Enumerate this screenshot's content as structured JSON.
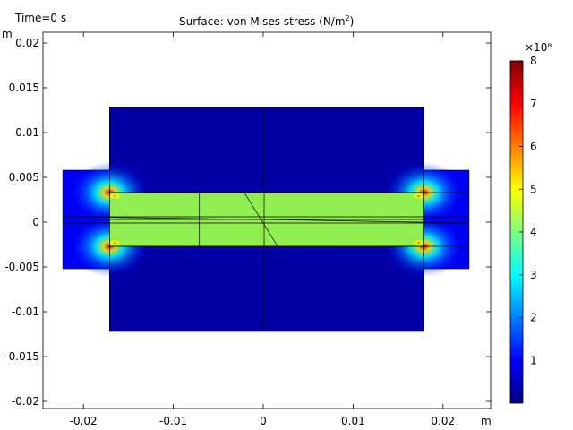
{
  "header": {
    "time_label": "Time=0 s",
    "title": "Surface: von Mises stress (N/m²)"
  },
  "chart_data": {
    "type": "heatmap",
    "title": "Surface: von Mises stress (N/m²)",
    "xlabel": "m",
    "ylabel": "m",
    "xlim": [
      -0.0245,
      0.0253
    ],
    "ylim": [
      -0.0208,
      0.0212
    ],
    "x_ticks": [
      "-0.02",
      "-0.01",
      "0",
      "0.01",
      "0.02"
    ],
    "x_tick_values": [
      -0.02,
      -0.01,
      0,
      0.01,
      0.02
    ],
    "y_ticks": [
      "0.02",
      "0.015",
      "0.01",
      "0.005",
      "0",
      "-0.005",
      "-0.01",
      "-0.015",
      "-0.02"
    ],
    "y_tick_values": [
      0.02,
      0.015,
      0.01,
      0.005,
      0,
      -0.005,
      -0.01,
      -0.015,
      -0.02
    ],
    "colorbar": {
      "label": "×10⁸",
      "ticks": [
        "1",
        "2",
        "3",
        "4",
        "5",
        "6",
        "7",
        "8"
      ],
      "tick_values": [
        1,
        2,
        3,
        4,
        5,
        6,
        7,
        8
      ],
      "min": 0,
      "max": 8,
      "colormap": [
        "#00007f",
        "#0000ff",
        "#007fff",
        "#00ffff",
        "#7fff7f",
        "#ffff00",
        "#ff7f00",
        "#ff0000",
        "#7f0000"
      ]
    },
    "regions": [
      {
        "name": "outer-block",
        "x": [
          -0.0171,
          0.0179
        ],
        "y": [
          -0.0122,
          0.0128
        ],
        "stress": 0.3
      },
      {
        "name": "inner-bar",
        "x": [
          -0.0171,
          0.0179
        ],
        "y": [
          -0.0027,
          0.0033
        ],
        "stress": 4.0
      },
      {
        "name": "left-tab",
        "x": [
          -0.0223,
          -0.0171
        ],
        "y": [
          -0.0052,
          0.0058
        ],
        "stress": 0.9
      },
      {
        "name": "right-tab",
        "x": [
          0.0179,
          0.0229
        ],
        "y": [
          -0.0052,
          0.0058
        ],
        "stress": 0.9
      }
    ],
    "stress_concentrations": [
      {
        "x": -0.0171,
        "y": 0.0033,
        "stress": 8.0
      },
      {
        "x": -0.0171,
        "y": -0.0027,
        "stress": 8.0
      },
      {
        "x": 0.0179,
        "y": 0.0033,
        "stress": 7.5
      },
      {
        "x": 0.0179,
        "y": -0.0027,
        "stress": 7.5
      }
    ],
    "colors": {
      "low": "#00007f",
      "bar": "#90ee50",
      "high": "#7f0000",
      "edge": "#000000"
    }
  }
}
